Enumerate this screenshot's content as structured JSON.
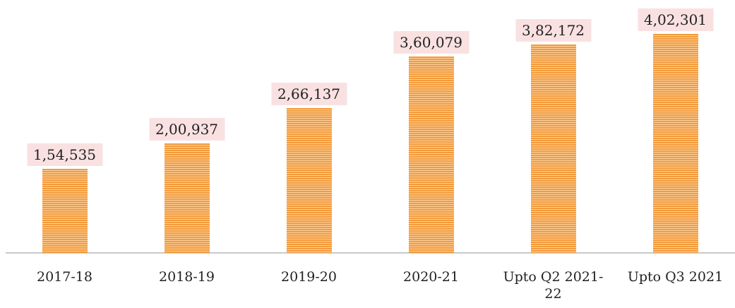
{
  "chart_data": {
    "type": "bar",
    "categories": [
      "2017-18",
      "2018-19",
      "2019-20",
      "2020-21",
      "Upto Q2 2021-22",
      "Upto Q3 2021"
    ],
    "values": [
      154535,
      200937,
      266137,
      360079,
      382172,
      402301
    ],
    "value_labels": [
      "1,54,535",
      "2,00,937",
      "2,66,137",
      "3,60,079",
      "3,82,172",
      "4,02,301"
    ],
    "color": "#f39a3a",
    "ylim": [
      0,
      450000
    ]
  }
}
